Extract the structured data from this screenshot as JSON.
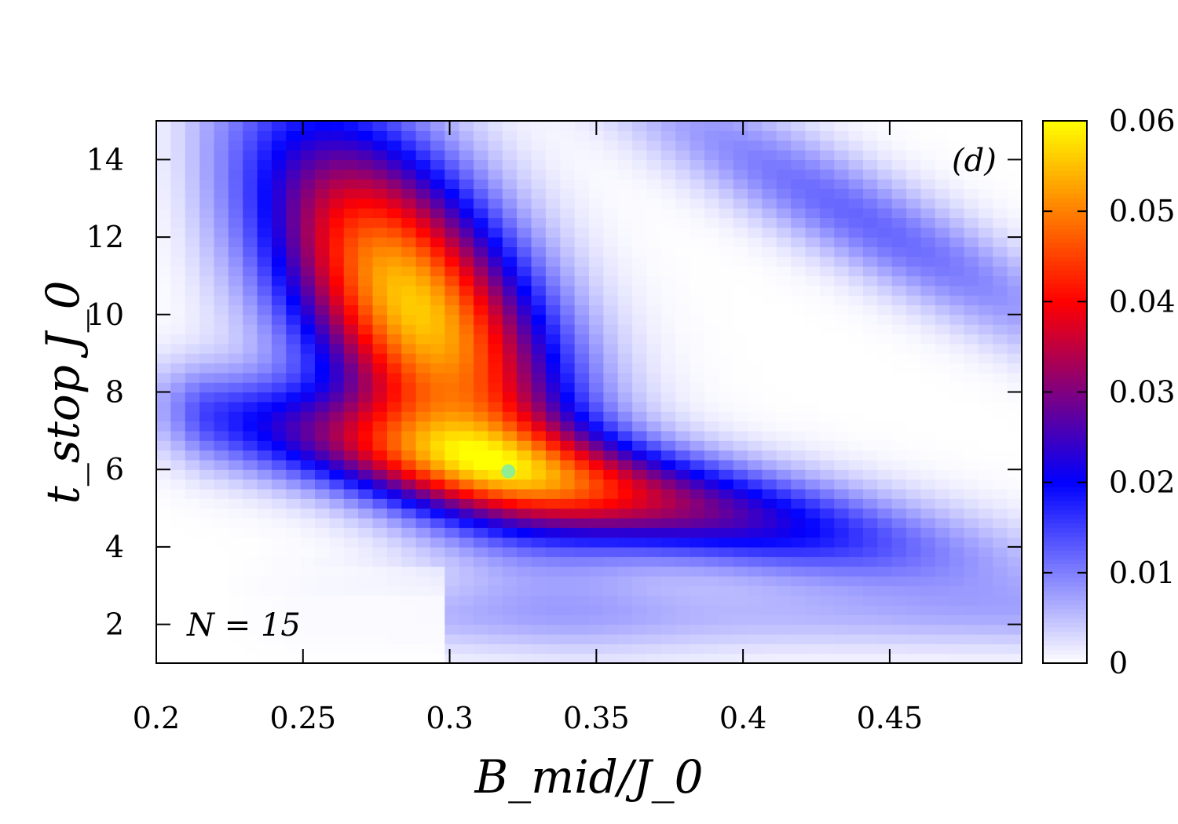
{
  "chart_data": {
    "type": "heatmap",
    "xlabel": "B_mid/J_0",
    "ylabel": "t_stop J_0",
    "xlim": [
      0.2,
      0.495
    ],
    "ylim": [
      1,
      15
    ],
    "x_ticks": [
      "0.2",
      "0.25",
      "0.3",
      "0.35",
      "0.4",
      "0.45"
    ],
    "y_ticks": [
      "2",
      "4",
      "6",
      "8",
      "10",
      "12",
      "14"
    ],
    "colorbar": {
      "range": [
        0,
        0.06
      ],
      "ticks": [
        "0",
        "0.01",
        "0.02",
        "0.03",
        "0.04",
        "0.05",
        "0.06"
      ],
      "colors": [
        "#ffffff",
        "#0000ff",
        "#ff0000",
        "#ffff00"
      ],
      "stops": [
        0,
        0.02,
        0.04,
        0.06
      ]
    },
    "annotations": {
      "panel": "(d)",
      "n_label": "N = 15"
    },
    "marker": {
      "x": 0.32,
      "y": 5.95,
      "color": "#90ee90"
    },
    "grid": {
      "x_count": 60,
      "y_count": 56,
      "features": [
        {
          "kind": "ridge",
          "amp": 0.056,
          "x0": 0.288,
          "y0": 10.2,
          "y_slope": -55,
          "sx": 0.035,
          "sy": 2.6
        },
        {
          "kind": "band_low",
          "amp": 0.036,
          "x0": 0.33,
          "y0": 5.8,
          "y_slope": -14,
          "sx": 0.085,
          "sy": 0.9
        },
        {
          "kind": "band_upper",
          "amp": 0.012,
          "x0": 0.44,
          "y0": 12.5,
          "y_slope": -40,
          "sx": 0.06,
          "sy": 1.0
        },
        {
          "kind": "floor",
          "amp": 0.005,
          "y0": 2.2,
          "sy": 0.9
        }
      ]
    }
  }
}
